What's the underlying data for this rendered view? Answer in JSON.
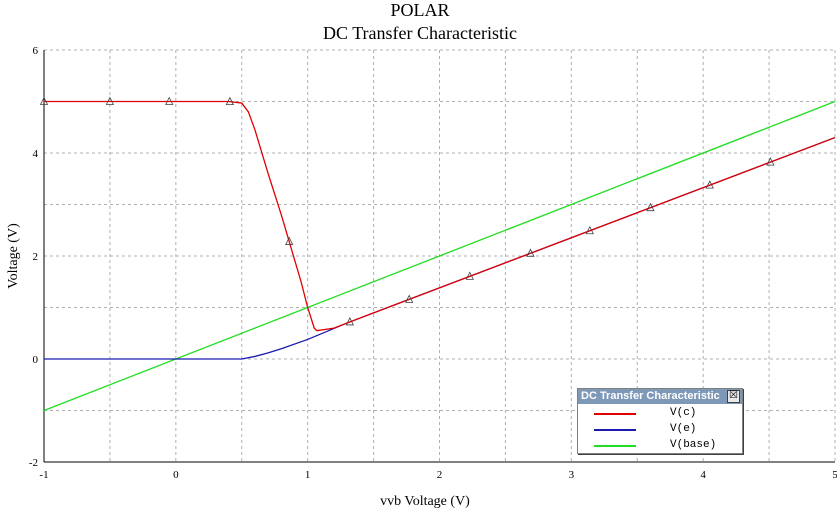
{
  "chart_data": {
    "type": "line",
    "title": "POLAR",
    "subtitle": "DC Transfer Characteristic",
    "xlabel": "vvb Voltage (V)",
    "ylabel": "Voltage (V)",
    "xlim": [
      -1,
      5
    ],
    "ylim": [
      -2,
      6
    ],
    "x_ticks": [
      -1,
      0,
      1,
      2,
      3,
      4,
      5
    ],
    "y_ticks": [
      -2,
      0,
      2,
      4,
      6
    ],
    "grid": true,
    "legend_position": "bottom-right",
    "series": [
      {
        "name": "V(c)",
        "color": "#e00000",
        "marker": "triangle",
        "points": [
          [
            -1,
            5
          ],
          [
            0.4,
            5
          ],
          [
            0.5,
            4.97
          ],
          [
            0.55,
            4.8
          ],
          [
            0.6,
            4.45
          ],
          [
            0.7,
            3.6
          ],
          [
            0.8,
            2.8
          ],
          [
            0.86,
            2.28
          ],
          [
            0.95,
            1.5
          ],
          [
            1.0,
            1.0
          ],
          [
            1.05,
            0.6
          ],
          [
            1.07,
            0.55
          ],
          [
            1.2,
            0.6
          ],
          [
            1.3,
            0.7
          ],
          [
            5,
            4.3
          ]
        ],
        "marker_x": [
          -1,
          -0.5,
          -0.05,
          0.41,
          0.86,
          1.32,
          1.77,
          2.23,
          2.69,
          3.14,
          3.6,
          4.05,
          4.51
        ]
      },
      {
        "name": "V(e)",
        "color": "#1a1ab0",
        "marker": "none",
        "points": [
          [
            -1,
            0
          ],
          [
            0.5,
            0
          ],
          [
            0.6,
            0.05
          ],
          [
            0.7,
            0.12
          ],
          [
            0.8,
            0.2
          ],
          [
            1.0,
            0.38
          ],
          [
            1.3,
            0.7
          ],
          [
            5,
            4.3
          ]
        ]
      },
      {
        "name": "V(base)",
        "color": "#22dd22",
        "marker": "none",
        "points": [
          [
            -1,
            -1
          ],
          [
            5,
            5
          ]
        ]
      }
    ]
  },
  "legend": {
    "title": "DC Transfer Characteristic",
    "close_glyph": "☒",
    "items": [
      {
        "label": "V(c)",
        "color": "#e00000"
      },
      {
        "label": "V(e)",
        "color": "#1a1ab0"
      },
      {
        "label": "V(base)",
        "color": "#22dd22"
      }
    ]
  }
}
